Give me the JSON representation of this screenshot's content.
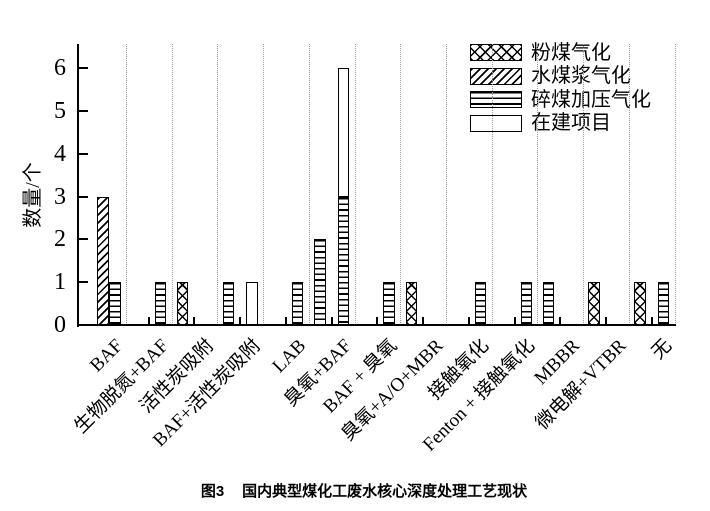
{
  "figure_caption": {
    "label": "图3",
    "title": "国内典型煤化工废水核心深度处理工艺现状"
  },
  "chart_data": {
    "type": "bar",
    "title": "",
    "xlabel": "",
    "ylabel": "数量/个",
    "ylim": [
      0,
      6
    ],
    "yticks": [
      "0",
      "1",
      "2",
      "3",
      "4",
      "5",
      "6"
    ],
    "grid": "vertical dotted lines between categories",
    "legend": {
      "position": "upper right inside plot",
      "entries": [
        {
          "name": "粉煤气化",
          "pattern": "crosshatch"
        },
        {
          "name": "水煤浆气化",
          "pattern": "diagonal"
        },
        {
          "name": "碎煤加压气化",
          "pattern": "horizontal"
        },
        {
          "name": "在建项目",
          "pattern": "plain-white"
        }
      ]
    },
    "categories": [
      "BAF",
      "生物脱氮+BAF",
      "活性炭吸附",
      "BAF+活性炭吸附",
      "LAB",
      "臭氧+BAF",
      "BAF + 臭氧",
      "臭氧+A/O+MBR",
      "接触氧化",
      "Fenton + 接触氧化",
      "MBBR",
      "微电解+VTBR",
      "无"
    ],
    "bars": [
      {
        "category": "BAF",
        "items": [
          {
            "series": "水煤浆气化",
            "value": 3,
            "slot": 0
          },
          {
            "series": "碎煤加压气化",
            "value": 1,
            "slot": 1
          }
        ]
      },
      {
        "category": "生物脱氮+BAF",
        "items": [
          {
            "series": "碎煤加压气化",
            "value": 1,
            "slot": 1
          }
        ]
      },
      {
        "category": "活性炭吸附",
        "items": [
          {
            "series": "粉煤气化",
            "value": 1,
            "slot": -1
          }
        ]
      },
      {
        "category": "BAF+活性炭吸附",
        "items": [
          {
            "series": "碎煤加压气化",
            "value": 1,
            "slot": -1
          },
          {
            "series": "在建项目",
            "value": 1,
            "slot": 1
          }
        ]
      },
      {
        "category": "LAB",
        "items": [
          {
            "series": "碎煤加压气化",
            "value": 1,
            "slot": 1
          }
        ]
      },
      {
        "category": "臭氧+BAF",
        "items": [
          {
            "series": "碎煤加压气化",
            "value": 2,
            "slot": -1
          },
          {
            "slot": 1,
            "stack": [
              {
                "series": "碎煤加压气化",
                "value": 3
              },
              {
                "series": "在建项目",
                "value": 3
              }
            ]
          }
        ]
      },
      {
        "category": "BAF + 臭氧",
        "items": [
          {
            "series": "碎煤加压气化",
            "value": 1,
            "slot": 1
          }
        ]
      },
      {
        "category": "臭氧+A/O+MBR",
        "items": [
          {
            "series": "粉煤气化",
            "value": 1,
            "slot": -1
          }
        ]
      },
      {
        "category": "接触氧化",
        "items": [
          {
            "series": "碎煤加压气化",
            "value": 1,
            "slot": 1
          }
        ]
      },
      {
        "category": "Fenton + 接触氧化",
        "items": [
          {
            "series": "碎煤加压气化",
            "value": 1,
            "slot": 1
          }
        ]
      },
      {
        "category": "MBBR",
        "items": [
          {
            "series": "碎煤加压气化",
            "value": 1,
            "slot": -1
          }
        ]
      },
      {
        "category": "微电解+VTBR",
        "items": [
          {
            "series": "粉煤气化",
            "value": 1,
            "slot": -1
          }
        ]
      },
      {
        "category": "无",
        "items": [
          {
            "series": "粉煤气化",
            "value": 1,
            "slot": -1
          },
          {
            "series": "碎煤加压气化",
            "value": 1,
            "slot": 1
          }
        ]
      }
    ],
    "colors": {
      "foreground": "#000000",
      "background": "#ffffff",
      "gridline": "#9a9a9a"
    }
  }
}
